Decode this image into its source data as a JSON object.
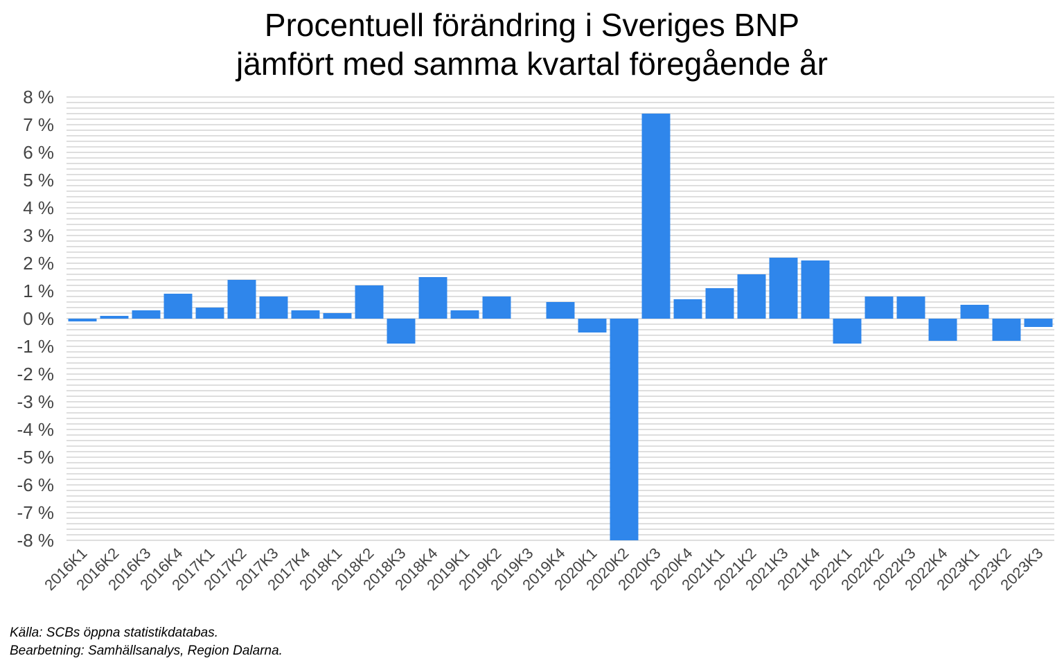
{
  "title_lines": [
    "Procentuell förändring i Sveriges BNP",
    "jämfört med samma kvartal föregående år"
  ],
  "footer_lines": [
    "Källa: SCBs öppna statistikdatabas.",
    "Bearbetning: Samhällsanalys, Region Dalarna."
  ],
  "chart_data": {
    "type": "bar",
    "title": "Procentuell förändring i Sveriges BNP jämfört med samma kvartal föregående år",
    "xlabel": "",
    "ylabel": "",
    "ylim": [
      -8,
      8
    ],
    "ytick_step": 1,
    "ytick_labels": [
      "8 %",
      "7 %",
      "6 %",
      "5 %",
      "4 %",
      "3 %",
      "2 %",
      "1 %",
      "0 %",
      "-1 %",
      "-2 %",
      "-3 %",
      "-4 %",
      "-5 %",
      "-6 %",
      "-7 %",
      "-8 %"
    ],
    "grid": true,
    "legend": "none",
    "bar_color": "#2f86eb",
    "grid_color": "#d3d3d3",
    "categories": [
      "2016K1",
      "2016K2",
      "2016K3",
      "2016K4",
      "2017K1",
      "2017K2",
      "2017K3",
      "2017K4",
      "2018K1",
      "2018K2",
      "2018K3",
      "2018K4",
      "2019K1",
      "2019K2",
      "2019K3",
      "2019K4",
      "2020K1",
      "2020K2",
      "2020K3",
      "2020K4",
      "2021K1",
      "2021K2",
      "2021K3",
      "2021K4",
      "2022K1",
      "2022K2",
      "2022K3",
      "2022K4",
      "2023K1",
      "2023K2",
      "2023K3"
    ],
    "values": [
      -0.1,
      0.1,
      0.3,
      0.9,
      0.4,
      1.4,
      0.8,
      0.3,
      0.2,
      1.2,
      -0.9,
      1.5,
      0.3,
      0.8,
      0.0,
      0.6,
      -0.5,
      -8.0,
      7.4,
      0.7,
      1.1,
      1.6,
      2.2,
      2.1,
      -0.9,
      0.8,
      0.8,
      -0.8,
      0.5,
      -0.8,
      -0.3
    ]
  }
}
